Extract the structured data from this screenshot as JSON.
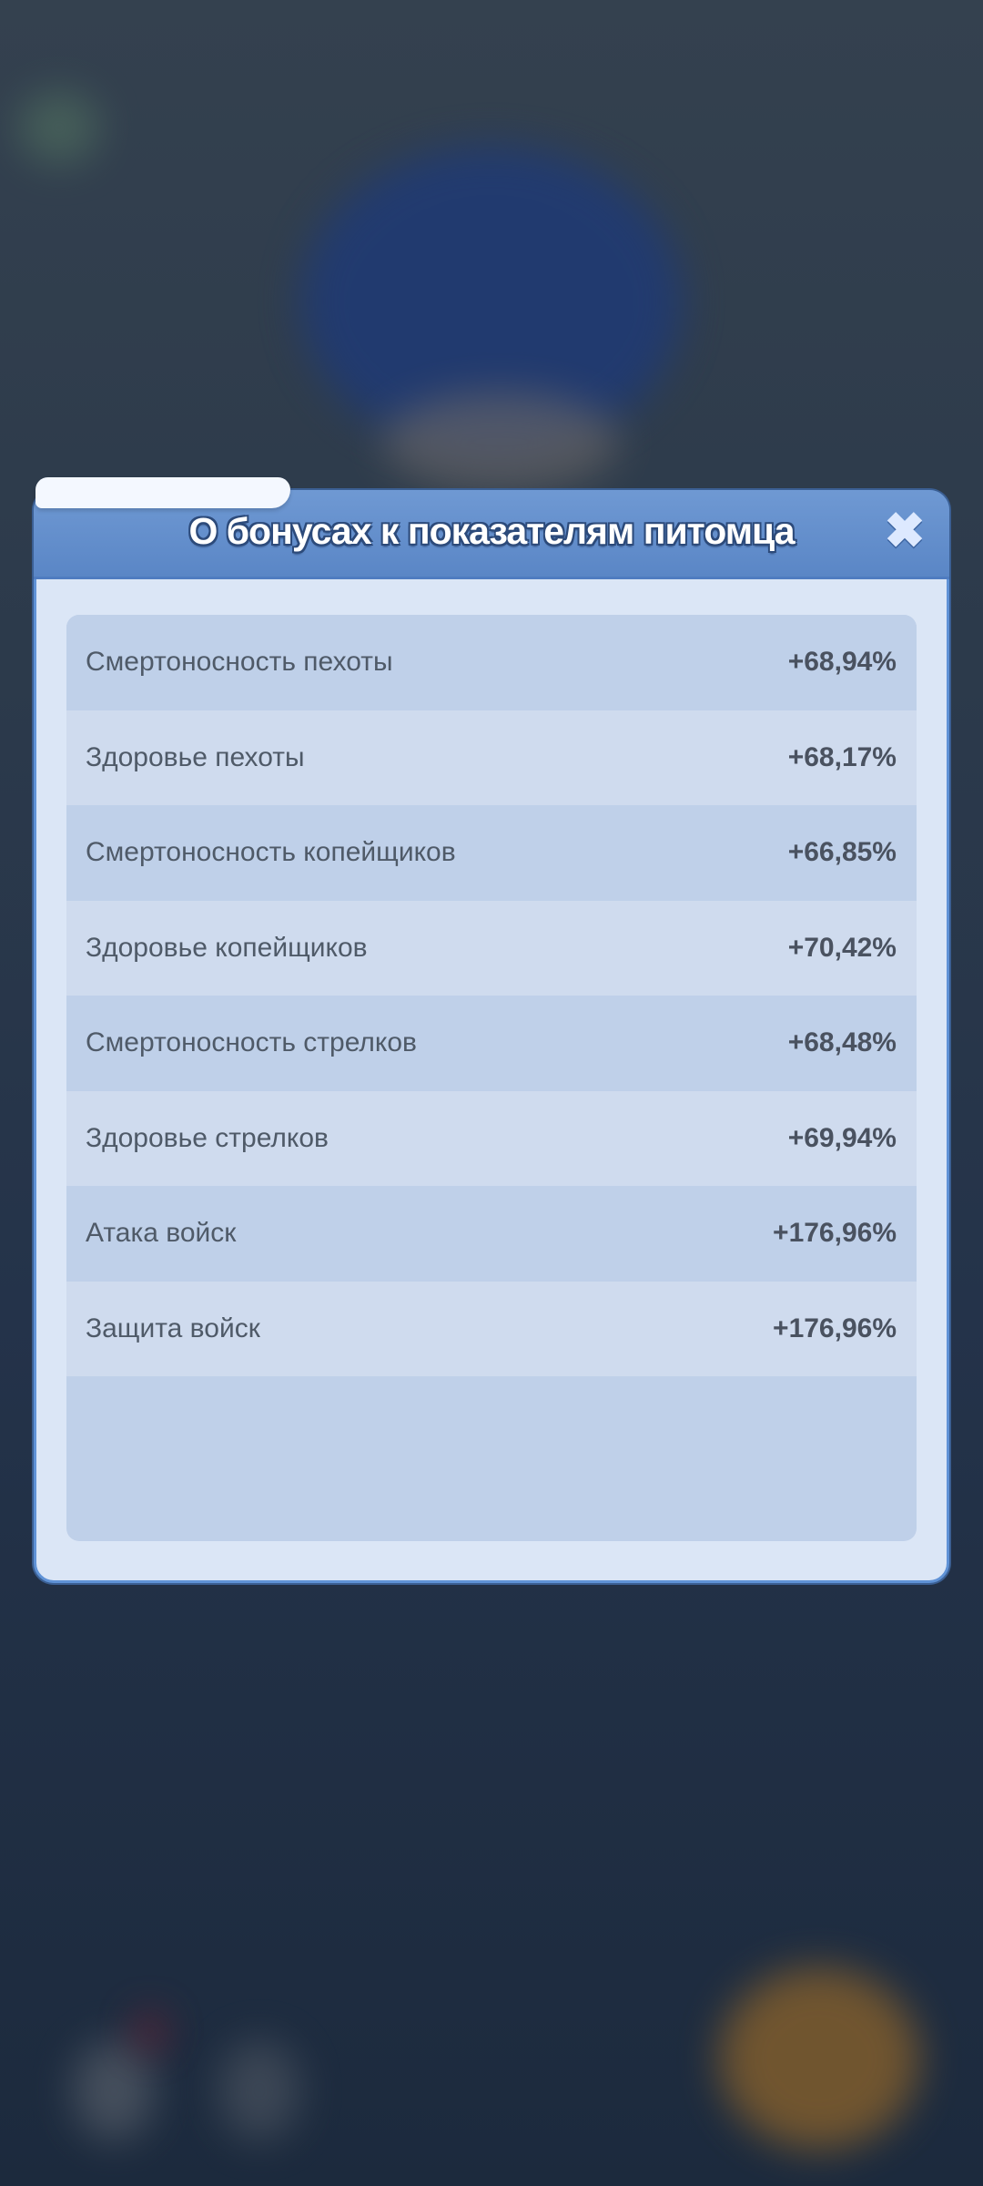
{
  "dialog": {
    "title": "О бонусах к показателям питомца",
    "close_icon": "close-x-icon",
    "rows": [
      {
        "label": "Смертоносность пехоты",
        "value": "+68,94%"
      },
      {
        "label": "Здоровье пехоты",
        "value": "+68,17%"
      },
      {
        "label": "Смертоносность копейщиков",
        "value": "+66,85%"
      },
      {
        "label": "Здоровье копейщиков",
        "value": "+70,42%"
      },
      {
        "label": "Смертоносность стрелков",
        "value": "+68,48%"
      },
      {
        "label": "Здоровье стрелков",
        "value": "+69,94%"
      },
      {
        "label": "Атака войск",
        "value": "+176,96%"
      },
      {
        "label": "Защита войск",
        "value": "+176,96%"
      }
    ]
  },
  "colors": {
    "header": "#5a86c6",
    "panel": "#bfd0e9",
    "background": "#2c3a4b"
  }
}
